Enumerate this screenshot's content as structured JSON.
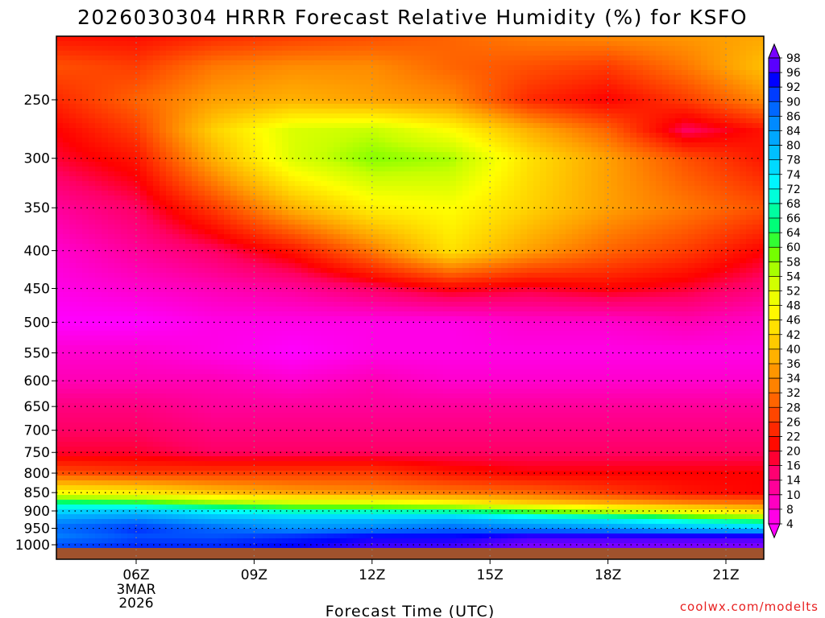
{
  "chart_data": {
    "type": "heatmap",
    "title": "2026030304 HRRR Forecast Relative Humidity (%) for KSFO",
    "xlabel": "Forecast Time (UTC)",
    "ylabel": "",
    "credit": "coolwx.com/modelts",
    "x_ticks": [
      "06Z",
      "09Z",
      "12Z",
      "15Z",
      "18Z",
      "21Z"
    ],
    "x_date_label": [
      "3MAR",
      "2026"
    ],
    "xlim_hours": [
      4,
      22
    ],
    "y_ticks": [
      250,
      300,
      350,
      400,
      450,
      500,
      550,
      600,
      650,
      700,
      750,
      800,
      850,
      900,
      950,
      1000
    ],
    "ylim_hpa": [
      200,
      1000
    ],
    "y_scale": "log",
    "grid": true,
    "colorbar": {
      "levels": [
        4,
        8,
        10,
        14,
        16,
        20,
        22,
        26,
        28,
        32,
        34,
        36,
        40,
        42,
        46,
        48,
        52,
        54,
        58,
        60,
        64,
        66,
        68,
        72,
        74,
        78,
        80,
        84,
        86,
        90,
        92,
        96,
        98
      ],
      "labels": [
        "98",
        "96",
        "92",
        "90",
        "86",
        "84",
        "80",
        "78",
        "74",
        "72",
        "68",
        "66",
        "64",
        "60",
        "58",
        "54",
        "52",
        "48",
        "46",
        "42",
        "40",
        "36",
        "34",
        "32",
        "28",
        "26",
        "22",
        "20",
        "16",
        "14",
        "10",
        "8",
        "4"
      ],
      "stops": [
        {
          "v": 4,
          "color": "#ff00ff"
        },
        {
          "v": 10,
          "color": "#ff00b4"
        },
        {
          "v": 16,
          "color": "#ff0064"
        },
        {
          "v": 20,
          "color": "#ff0000"
        },
        {
          "v": 26,
          "color": "#ff3c00"
        },
        {
          "v": 32,
          "color": "#ff7800"
        },
        {
          "v": 36,
          "color": "#ffa000"
        },
        {
          "v": 42,
          "color": "#ffd200"
        },
        {
          "v": 48,
          "color": "#ffff00"
        },
        {
          "v": 54,
          "color": "#c8ff00"
        },
        {
          "v": 60,
          "color": "#64ff00"
        },
        {
          "v": 64,
          "color": "#00ff64"
        },
        {
          "v": 68,
          "color": "#00ffb4"
        },
        {
          "v": 72,
          "color": "#00ffff"
        },
        {
          "v": 78,
          "color": "#00c8ff"
        },
        {
          "v": 84,
          "color": "#0096ff"
        },
        {
          "v": 90,
          "color": "#0050ff"
        },
        {
          "v": 94,
          "color": "#0000ff"
        },
        {
          "v": 98,
          "color": "#7800ff"
        }
      ]
    },
    "hours": [
      4,
      6,
      8,
      10,
      12,
      14,
      16,
      18,
      20,
      22
    ],
    "pressure_levels": [
      200,
      225,
      250,
      275,
      300,
      350,
      400,
      450,
      500,
      550,
      600,
      650,
      700,
      750,
      800,
      850,
      875,
      900,
      925,
      950,
      975,
      1000
    ],
    "rh_rows": [
      [
        20,
        20,
        22,
        24,
        26,
        30,
        34,
        36,
        36,
        36
      ],
      [
        28,
        26,
        32,
        34,
        34,
        30,
        28,
        26,
        32,
        40
      ],
      [
        24,
        30,
        36,
        38,
        36,
        34,
        24,
        20,
        26,
        34
      ],
      [
        20,
        26,
        42,
        52,
        54,
        48,
        38,
        30,
        16,
        22
      ],
      [
        18,
        22,
        38,
        52,
        58,
        56,
        44,
        36,
        28,
        22
      ],
      [
        12,
        16,
        26,
        38,
        46,
        48,
        42,
        36,
        32,
        28
      ],
      [
        8,
        12,
        16,
        22,
        32,
        44,
        36,
        30,
        26,
        20
      ],
      [
        6,
        8,
        10,
        12,
        16,
        20,
        18,
        20,
        18,
        14
      ],
      [
        4,
        4,
        6,
        6,
        6,
        6,
        8,
        8,
        10,
        8
      ],
      [
        8,
        8,
        6,
        4,
        6,
        6,
        6,
        6,
        6,
        6
      ],
      [
        10,
        10,
        10,
        8,
        10,
        8,
        8,
        8,
        8,
        8
      ],
      [
        14,
        14,
        12,
        12,
        12,
        12,
        12,
        12,
        12,
        12
      ],
      [
        16,
        16,
        14,
        14,
        14,
        14,
        14,
        14,
        14,
        14
      ],
      [
        18,
        18,
        16,
        16,
        16,
        16,
        16,
        16,
        16,
        16
      ],
      [
        28,
        26,
        26,
        26,
        26,
        22,
        20,
        20,
        20,
        20
      ],
      [
        48,
        46,
        40,
        36,
        34,
        32,
        30,
        26,
        22,
        20
      ],
      [
        64,
        62,
        56,
        52,
        50,
        46,
        40,
        36,
        32,
        30
      ],
      [
        76,
        78,
        72,
        68,
        68,
        66,
        60,
        54,
        48,
        42
      ],
      [
        84,
        86,
        82,
        80,
        80,
        82,
        78,
        74,
        68,
        62
      ],
      [
        88,
        92,
        88,
        84,
        86,
        88,
        86,
        84,
        80,
        78
      ],
      [
        86,
        90,
        90,
        92,
        94,
        94,
        96,
        96,
        96,
        96
      ],
      [
        90,
        92,
        92,
        94,
        96,
        96,
        98,
        98,
        98,
        98
      ]
    ],
    "ground": {
      "color": "#a0522d",
      "top_hpa": 1010
    }
  }
}
